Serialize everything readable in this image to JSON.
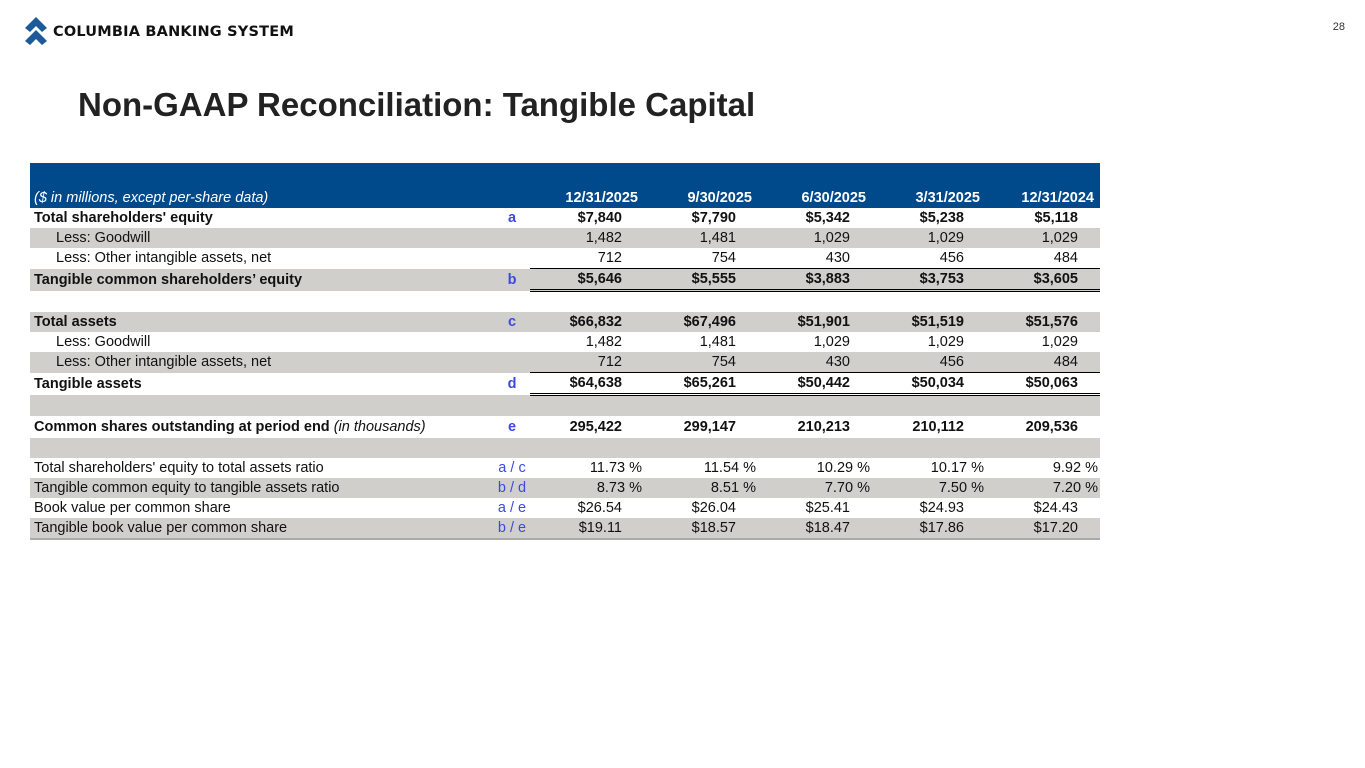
{
  "header": {
    "logo_text": "COLUMBIA BANKING SYSTEM",
    "page_number": "28"
  },
  "title": "Non-GAAP Reconciliation: Tangible Capital",
  "table": {
    "caption": "($ in millions, except per-share data)",
    "columns": [
      "12/31/2025",
      "9/30/2025",
      "6/30/2025",
      "3/31/2025",
      "12/31/2024"
    ],
    "rows": [
      {
        "label": "Total shareholders' equity",
        "key": "a",
        "values": [
          "$7,840",
          "$7,790",
          "$5,342",
          "$5,238",
          "$5,118"
        ]
      },
      {
        "label": "Less: Goodwill",
        "key": "",
        "values": [
          "1,482",
          "1,481",
          "1,029",
          "1,029",
          "1,029"
        ]
      },
      {
        "label": "Less: Other intangible assets, net",
        "key": "",
        "values": [
          "712",
          "754",
          "430",
          "456",
          "484"
        ]
      },
      {
        "label": "Tangible common shareholders’ equity",
        "key": "b",
        "values": [
          "$5,646",
          "$5,555",
          "$3,883",
          "$3,753",
          "$3,605"
        ]
      },
      {
        "label": "Total assets",
        "key": "c",
        "values": [
          "$66,832",
          "$67,496",
          "$51,901",
          "$51,519",
          "$51,576"
        ]
      },
      {
        "label": "Less: Goodwill",
        "key": "",
        "values": [
          "1,482",
          "1,481",
          "1,029",
          "1,029",
          "1,029"
        ]
      },
      {
        "label": "Less: Other intangible assets, net",
        "key": "",
        "values": [
          "712",
          "754",
          "430",
          "456",
          "484"
        ]
      },
      {
        "label": "Tangible assets",
        "key": "d",
        "values": [
          "$64,638",
          "$65,261",
          "$50,442",
          "$50,034",
          "$50,063"
        ]
      },
      {
        "label": "Common shares outstanding at period end",
        "label_note": "(in thousands)",
        "key": "e",
        "values": [
          "295,422",
          "299,147",
          "210,213",
          "210,112",
          "209,536"
        ]
      },
      {
        "label": "Total shareholders' equity to total assets ratio",
        "key": "a / c",
        "values": [
          "11.73 %",
          "11.54 %",
          "10.29 %",
          "10.17 %",
          "9.92 %"
        ]
      },
      {
        "label": "Tangible common equity to tangible assets ratio",
        "key": "b / d",
        "values": [
          "8.73 %",
          "8.51 %",
          "7.70 %",
          "7.50 %",
          "7.20 %"
        ]
      },
      {
        "label": "Book value per common share",
        "key": "a / e",
        "values": [
          "$26.54",
          "$26.04",
          "$25.41",
          "$24.93",
          "$24.43"
        ]
      },
      {
        "label": "Tangible book value per common share",
        "key": "b / e",
        "values": [
          "$19.11",
          "$18.57",
          "$18.47",
          "$17.86",
          "$17.20"
        ]
      }
    ]
  }
}
